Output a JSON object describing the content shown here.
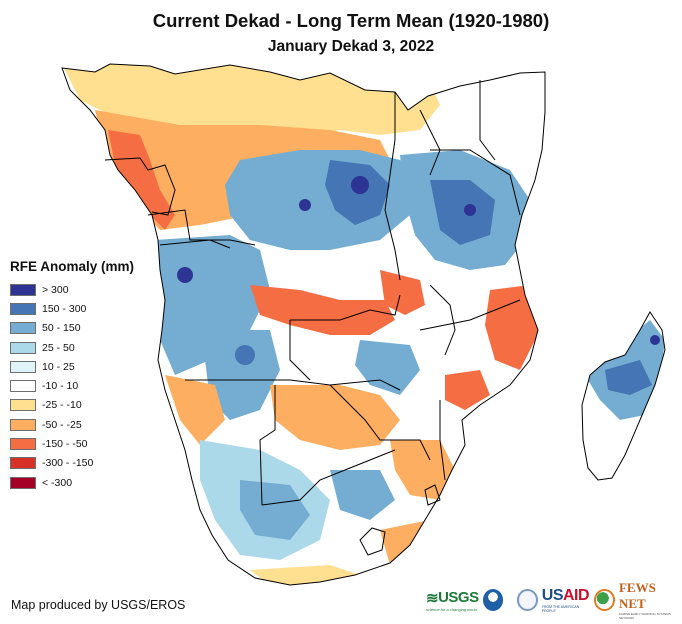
{
  "title": "Current Dekad - Long Term Mean (1920-1980)",
  "subtitle": "January Dekad 3, 2022",
  "legend": {
    "title": "RFE Anomaly (mm)",
    "items": [
      {
        "label": "> 300",
        "color": "#2d3494"
      },
      {
        "label": "150 - 300",
        "color": "#4575b4"
      },
      {
        "label": "50 - 150",
        "color": "#74add1"
      },
      {
        "label": "25 - 50",
        "color": "#abd9e9"
      },
      {
        "label": "10 - 25",
        "color": "#e0f3f8"
      },
      {
        "label": "-10 - 10",
        "color": "#ffffff"
      },
      {
        "label": "-25 - -10",
        "color": "#fee090"
      },
      {
        "label": "-50 - -25",
        "color": "#fdae61"
      },
      {
        "label": "-150 - -50",
        "color": "#f46d43"
      },
      {
        "label": "-300 - -150",
        "color": "#d73027"
      },
      {
        "label": "< -300",
        "color": "#a50026"
      }
    ]
  },
  "credit": "Map produced by USGS/EROS",
  "logos": {
    "usgs": "USGS",
    "usgs_tagline": "science for a changing world",
    "usaid_us": "US",
    "usaid_aid": "AID",
    "usaid_tagline": "FROM THE AMERICAN PEOPLE",
    "fews": "FEWS NET",
    "fews_tagline": "FAMINE EARLY WARNING SYSTEMS NETWORK"
  },
  "map": {
    "region": "Southern and Central Africa with Madagascar",
    "colors": {
      "border": "#000000",
      "dry_light": "#fee090",
      "dry": "#fdae61",
      "dry_strong": "#f46d43",
      "wet_light": "#e0f3f8",
      "wet_pale": "#abd9e9",
      "wet": "#74add1",
      "wet_strong": "#4575b4",
      "wet_extreme": "#2d3494"
    }
  }
}
